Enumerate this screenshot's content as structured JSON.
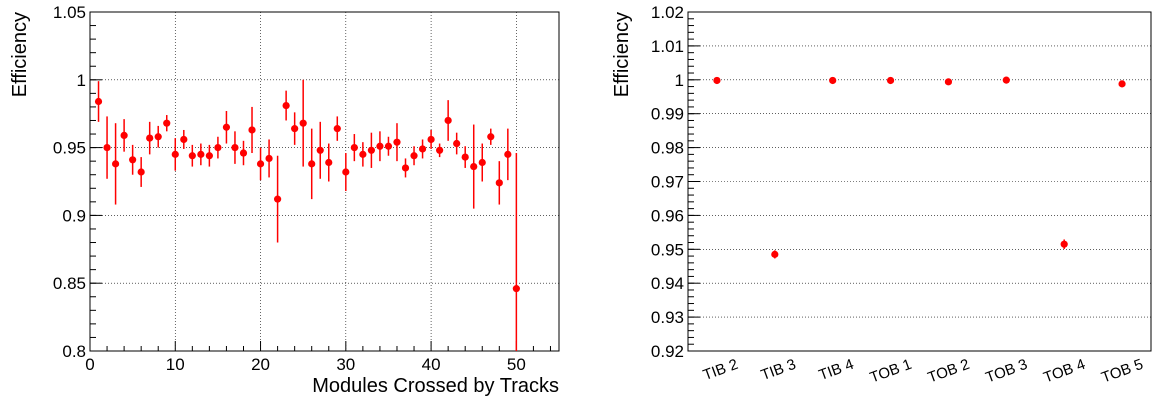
{
  "chart_data": [
    {
      "type": "scatter",
      "ylabel": "Efficiency",
      "xlabel": "Modules Crossed by Tracks",
      "xlim": [
        0,
        55
      ],
      "ylim": [
        0.8,
        1.05
      ],
      "grid": true,
      "x_ticks": [
        0,
        10,
        20,
        30,
        40,
        50
      ],
      "x_tick_labels": [
        "0",
        "10",
        "20",
        "30",
        "40",
        "50"
      ],
      "y_ticks": [
        0.8,
        0.85,
        0.9,
        0.95,
        1.0,
        1.05
      ],
      "y_tick_labels": [
        "0.8",
        "0.85",
        "0.9",
        "0.95",
        "1",
        "1.05"
      ],
      "marker_color": "#ff0000",
      "series": [
        {
          "x": [
            1,
            2,
            3,
            4,
            5,
            6,
            7,
            8,
            9,
            10,
            11,
            12,
            13,
            14,
            15,
            16,
            17,
            18,
            19,
            20,
            21,
            22,
            23,
            24,
            25,
            26,
            27,
            28,
            29,
            30,
            31,
            32,
            33,
            34,
            35,
            36,
            37,
            38,
            39,
            40,
            41,
            42,
            43,
            44,
            45,
            46,
            47,
            48,
            49,
            50
          ],
          "y": [
            0.984,
            0.95,
            0.938,
            0.959,
            0.941,
            0.932,
            0.957,
            0.958,
            0.968,
            0.945,
            0.956,
            0.944,
            0.945,
            0.944,
            0.95,
            0.965,
            0.95,
            0.946,
            0.963,
            0.938,
            0.942,
            0.912,
            0.981,
            0.964,
            0.968,
            0.938,
            0.948,
            0.939,
            0.964,
            0.932,
            0.95,
            0.945,
            0.948,
            0.951,
            0.951,
            0.954,
            0.935,
            0.944,
            0.949,
            0.956,
            0.948,
            0.97,
            0.953,
            0.943,
            0.936,
            0.939,
            0.958,
            0.924,
            0.945,
            0.846
          ],
          "yerr": [
            0.015,
            0.023,
            0.03,
            0.012,
            0.011,
            0.011,
            0.012,
            0.008,
            0.006,
            0.012,
            0.007,
            0.008,
            0.008,
            0.008,
            0.008,
            0.012,
            0.012,
            0.009,
            0.017,
            0.012,
            0.014,
            0.032,
            0.011,
            0.012,
            0.032,
            0.026,
            0.021,
            0.014,
            0.009,
            0.014,
            0.01,
            0.009,
            0.013,
            0.011,
            0.007,
            0.014,
            0.007,
            0.007,
            0.007,
            0.007,
            0.005,
            0.015,
            0.008,
            0.008,
            0.031,
            0.014,
            0.006,
            0.016,
            0.019,
            0.1
          ]
        }
      ]
    },
    {
      "type": "scatter",
      "ylabel": "Efficiency",
      "ylim": [
        0.92,
        1.02
      ],
      "grid": "horizontal",
      "categories": [
        "TIB 2",
        "TIB 3",
        "TIB 4",
        "TOB 1",
        "TOB 2",
        "TOB 3",
        "TOB 4",
        "TOB 5"
      ],
      "y_ticks": [
        0.92,
        0.93,
        0.94,
        0.95,
        0.96,
        0.97,
        0.98,
        0.99,
        1.0,
        1.01,
        1.02
      ],
      "y_tick_labels": [
        "0.92",
        "0.93",
        "0.94",
        "0.95",
        "0.96",
        "0.97",
        "0.98",
        "0.99",
        "1",
        "1.01",
        "1.02"
      ],
      "marker_color": "#ff0000",
      "series": [
        {
          "values": [
            0.9998,
            0.9485,
            0.9998,
            0.9998,
            0.9994,
            0.9999,
            0.9515,
            0.9988
          ],
          "yerr": [
            0.0004,
            0.0012,
            0.0004,
            0.0004,
            0.0005,
            0.0004,
            0.0014,
            0.0005
          ]
        }
      ]
    }
  ]
}
